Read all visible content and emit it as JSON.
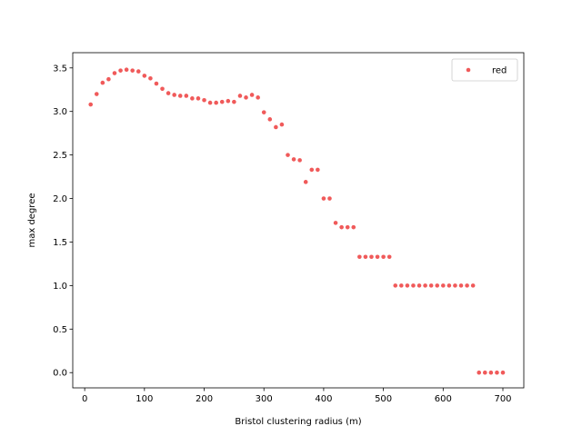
{
  "chart_data": {
    "type": "scatter",
    "title": "",
    "xlabel": "Bristol clustering radius (m)",
    "ylabel": "max degree",
    "xlim": [
      -20,
      735
    ],
    "ylim": [
      -0.175,
      3.675
    ],
    "xticks": [
      0,
      100,
      200,
      300,
      400,
      500,
      600,
      700
    ],
    "yticks": [
      0.0,
      0.5,
      1.0,
      1.5,
      2.0,
      2.5,
      3.0,
      3.5
    ],
    "ytick_labels": [
      "0.0",
      "0.5",
      "1.0",
      "1.5",
      "2.0",
      "2.5",
      "3.0",
      "3.5"
    ],
    "grid": false,
    "legend": {
      "position": "top-right",
      "entries": [
        "red"
      ]
    },
    "series": [
      {
        "name": "red",
        "color": "#f05a5a",
        "x": [
          10,
          20,
          30,
          40,
          50,
          60,
          70,
          80,
          90,
          100,
          110,
          120,
          130,
          140,
          150,
          160,
          170,
          180,
          190,
          200,
          210,
          220,
          230,
          240,
          250,
          260,
          270,
          280,
          290,
          300,
          310,
          320,
          330,
          340,
          350,
          360,
          370,
          380,
          390,
          400,
          410,
          420,
          430,
          440,
          450,
          460,
          470,
          480,
          490,
          500,
          510,
          520,
          530,
          540,
          550,
          560,
          570,
          580,
          590,
          600,
          610,
          620,
          630,
          640,
          650,
          660,
          670,
          680,
          690,
          700
        ],
        "y": [
          3.08,
          3.2,
          3.33,
          3.37,
          3.44,
          3.47,
          3.48,
          3.47,
          3.46,
          3.41,
          3.38,
          3.32,
          3.26,
          3.21,
          3.19,
          3.18,
          3.18,
          3.15,
          3.15,
          3.13,
          3.1,
          3.1,
          3.11,
          3.12,
          3.11,
          3.18,
          3.16,
          3.19,
          3.16,
          2.99,
          2.91,
          2.82,
          2.85,
          2.5,
          2.45,
          2.44,
          2.19,
          2.33,
          2.33,
          2.0,
          2.0,
          1.72,
          1.67,
          1.67,
          1.67,
          1.33,
          1.33,
          1.33,
          1.33,
          1.33,
          1.33,
          1.0,
          1.0,
          1.0,
          1.0,
          1.0,
          1.0,
          1.0,
          1.0,
          1.0,
          1.0,
          1.0,
          1.0,
          1.0,
          1.0,
          0.0,
          0.0,
          0.0,
          0.0,
          0.0
        ]
      }
    ]
  }
}
